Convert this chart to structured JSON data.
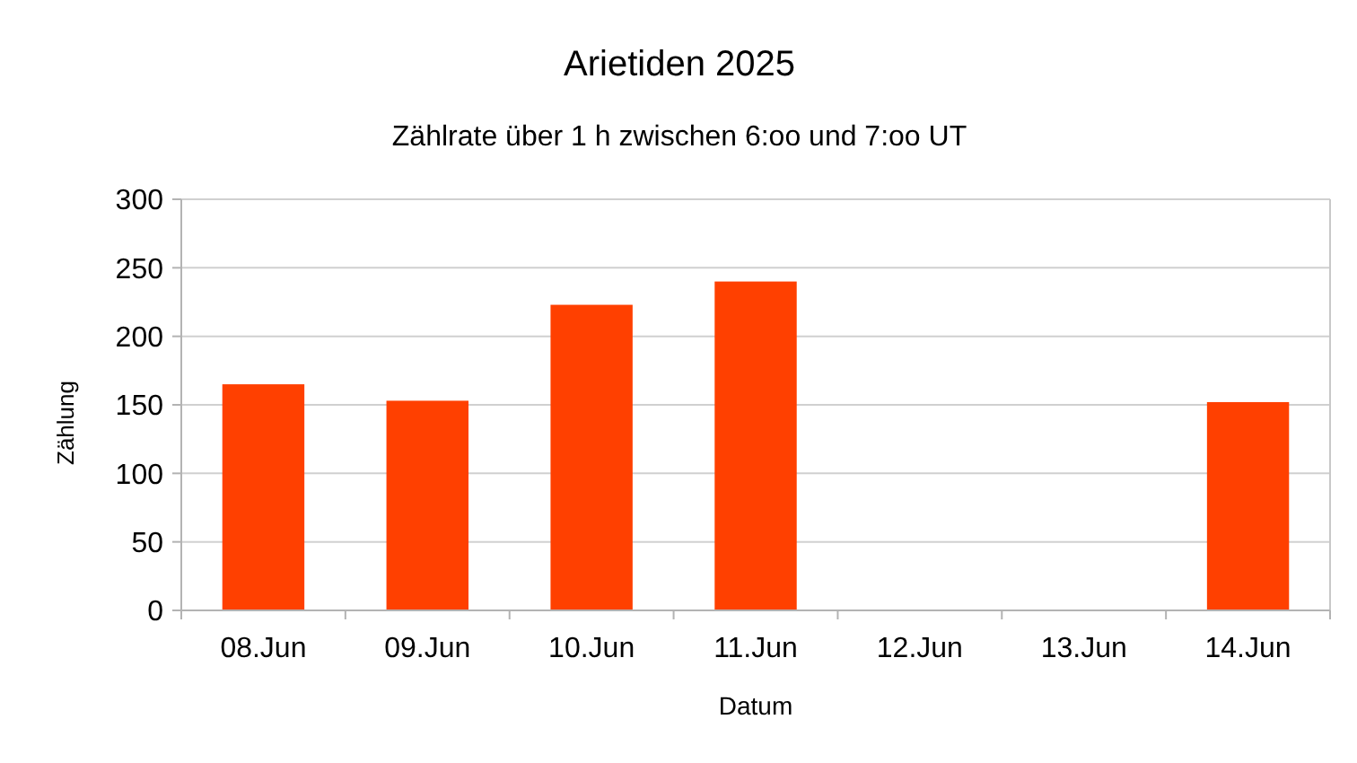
{
  "chart_data": {
    "type": "bar",
    "title": "Arietiden 2025",
    "subtitle": "Zählrate über 1 h zwischen 6:oo und 7:oo UT",
    "xlabel": "Datum",
    "ylabel": "Zählung",
    "categories": [
      "08.Jun",
      "09.Jun",
      "10.Jun",
      "11.Jun",
      "12.Jun",
      "13.Jun",
      "14.Jun"
    ],
    "values": [
      165,
      153,
      223,
      240,
      null,
      null,
      152
    ],
    "color": "#ff4000",
    "ylim": [
      0,
      300
    ],
    "yticks": [
      0,
      50,
      100,
      150,
      200,
      250,
      300
    ],
    "grid": "y"
  }
}
